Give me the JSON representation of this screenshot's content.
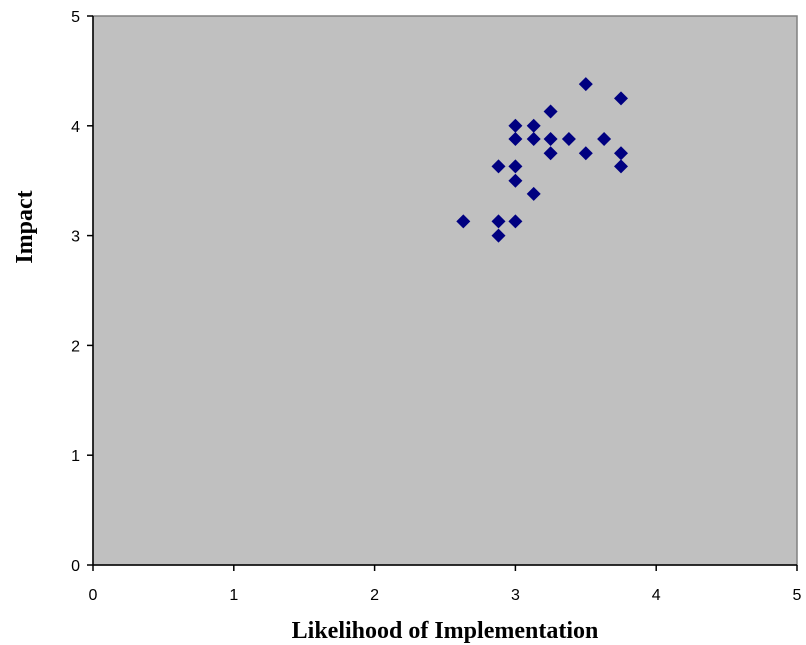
{
  "chart_data": {
    "type": "scatter",
    "title": "",
    "xlabel": "Likelihood of Implementation",
    "ylabel": "Impact",
    "xlim": [
      0,
      5
    ],
    "ylim": [
      0,
      5
    ],
    "x_ticks": [
      0,
      1,
      2,
      3,
      4,
      5
    ],
    "y_ticks": [
      0,
      1,
      2,
      3,
      4,
      5
    ],
    "x_tick_labels": [
      "0",
      "1",
      "2",
      "3",
      "4",
      "5"
    ],
    "y_tick_labels": [
      "0",
      "1",
      "2",
      "3",
      "4",
      "5"
    ],
    "grid": false,
    "legend": "none",
    "plot_background": "#c0c0c0",
    "marker_color": "#000080",
    "marker": "diamond",
    "points": [
      {
        "x": 2.63,
        "y": 3.13
      },
      {
        "x": 2.88,
        "y": 3.63
      },
      {
        "x": 2.88,
        "y": 3.13
      },
      {
        "x": 2.88,
        "y": 3.0
      },
      {
        "x": 3.0,
        "y": 4.0
      },
      {
        "x": 3.0,
        "y": 3.88
      },
      {
        "x": 3.0,
        "y": 3.63
      },
      {
        "x": 3.0,
        "y": 3.5
      },
      {
        "x": 3.0,
        "y": 3.13
      },
      {
        "x": 3.13,
        "y": 4.0
      },
      {
        "x": 3.13,
        "y": 3.88
      },
      {
        "x": 3.13,
        "y": 3.38
      },
      {
        "x": 3.25,
        "y": 4.13
      },
      {
        "x": 3.25,
        "y": 3.88
      },
      {
        "x": 3.25,
        "y": 3.75
      },
      {
        "x": 3.38,
        "y": 3.88
      },
      {
        "x": 3.5,
        "y": 4.38
      },
      {
        "x": 3.5,
        "y": 3.75
      },
      {
        "x": 3.63,
        "y": 3.88
      },
      {
        "x": 3.75,
        "y": 4.25
      },
      {
        "x": 3.75,
        "y": 3.75
      },
      {
        "x": 3.75,
        "y": 3.63
      }
    ]
  }
}
